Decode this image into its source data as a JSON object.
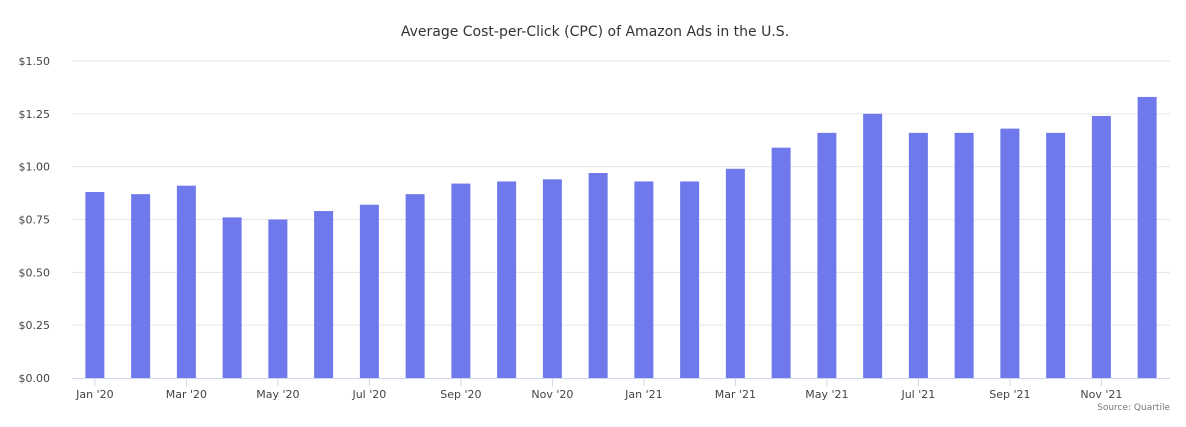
{
  "chart_data": {
    "type": "bar",
    "title": "Average Cost-per-Click (CPC) of Amazon Ads in the U.S.",
    "xlabel": "",
    "ylabel": "",
    "categories": [
      "Jan '20",
      "Feb '20",
      "Mar '20",
      "Apr '20",
      "May '20",
      "Jun '20",
      "Jul '20",
      "Aug '20",
      "Sep '20",
      "Oct '20",
      "Nov '20",
      "Dec '20",
      "Jan '21",
      "Feb '21",
      "Mar '21",
      "Apr '21",
      "May '21",
      "Jun '21",
      "Jul '21",
      "Aug '21",
      "Sep '21",
      "Oct '21",
      "Nov '21",
      "Dec '21"
    ],
    "x_tick_labels": [
      "Jan '20",
      "Mar '20",
      "May '20",
      "Jul '20",
      "Sep '20",
      "Nov '20",
      "Jan '21",
      "Mar '21",
      "May '21",
      "Jul '21",
      "Sep '21",
      "Nov '21"
    ],
    "values": [
      0.88,
      0.87,
      0.91,
      0.76,
      0.75,
      0.79,
      0.82,
      0.87,
      0.92,
      0.93,
      0.94,
      0.97,
      0.93,
      0.93,
      0.99,
      1.09,
      1.16,
      1.25,
      1.16,
      1.16,
      1.18,
      1.16,
      1.24,
      1.33
    ],
    "ylim": [
      0,
      1.5
    ],
    "y_ticks": [
      0,
      0.25,
      0.5,
      0.75,
      1.0,
      1.25,
      1.5
    ],
    "y_tick_labels": [
      "$0.00",
      "$0.25",
      "$0.50",
      "$0.75",
      "$1.00",
      "$1.25",
      "$1.50"
    ],
    "grid": true,
    "legend": "none",
    "source": "Source: Quartile",
    "bar_color": "#6F79EC",
    "grid_color": "#E6E6E6",
    "axis_color": "#CCD6EB"
  }
}
